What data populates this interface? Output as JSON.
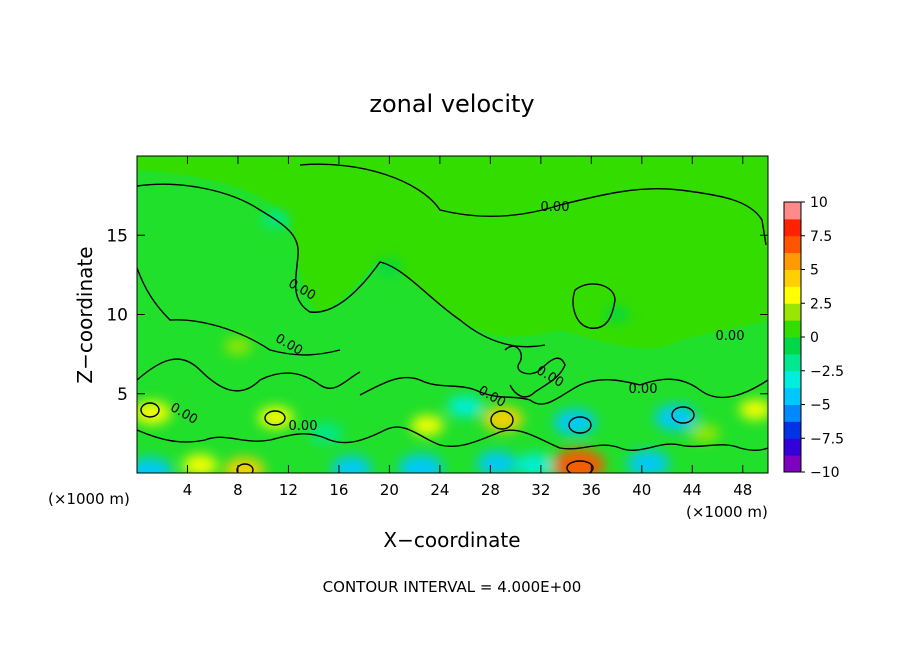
{
  "chart_data": {
    "type": "heatmap",
    "title": "zonal velocity",
    "xlabel": "X−coordinate",
    "ylabel": "Z−coordinate",
    "x_unit_left": "(×1000 m)",
    "x_unit_right": "(×1000 m)",
    "xlim": [
      0,
      50
    ],
    "ylim": [
      0,
      20
    ],
    "x_ticks": [
      4,
      8,
      12,
      16,
      20,
      24,
      28,
      32,
      36,
      40,
      44,
      48
    ],
    "x_tick_labels": [
      "4",
      "8",
      "12",
      "16",
      "20",
      "24",
      "28",
      "32",
      "36",
      "40",
      "44",
      "48"
    ],
    "y_ticks": [
      5,
      10,
      15
    ],
    "y_tick_labels": [
      "5",
      "10",
      "15"
    ],
    "contour_labels": [
      "0.00",
      "0.00",
      "0.00",
      "0.00",
      "0.00",
      "0.00",
      "0.00",
      "0.00",
      "0.00"
    ],
    "footer": "CONTOUR INTERVAL = 4.000E+00",
    "colorbar": {
      "min": -10,
      "max": 10,
      "tick_labels": [
        "10",
        "7.5",
        "5",
        "2.5",
        "0",
        "−2.5",
        "−5",
        "−7.5",
        "−10"
      ],
      "tick_values": [
        10,
        7.5,
        5,
        2.5,
        0,
        -2.5,
        -5,
        -7.5,
        -10
      ],
      "colors": [
        "#7f00bf",
        "#3300d9",
        "#0033e6",
        "#0088ff",
        "#00c8ff",
        "#00eedd",
        "#00e890",
        "#00d84a",
        "#33dd00",
        "#9ae600",
        "#ffff00",
        "#ffd000",
        "#ff9a00",
        "#ff5500",
        "#ff2200",
        "#ff8a8a"
      ]
    },
    "features": [
      {
        "x": 1,
        "z": 0.1,
        "value": -5
      },
      {
        "x": 1.2,
        "z": 3.8,
        "value": 3.5
      },
      {
        "x": 5,
        "z": 0.5,
        "value": 3
      },
      {
        "x": 8.5,
        "z": 0.2,
        "value": 4
      },
      {
        "x": 11,
        "z": 3.5,
        "value": 3
      },
      {
        "x": 15,
        "z": 2.5,
        "value": -2.5
      },
      {
        "x": 17,
        "z": 0.3,
        "value": -4
      },
      {
        "x": 22.5,
        "z": 0.3,
        "value": -5
      },
      {
        "x": 23,
        "z": 3,
        "value": 2.5
      },
      {
        "x": 26,
        "z": 4.2,
        "value": -3
      },
      {
        "x": 28.5,
        "z": 0.6,
        "value": -4
      },
      {
        "x": 29,
        "z": 3.4,
        "value": 4
      },
      {
        "x": 31.5,
        "z": 0.5,
        "value": -3.5
      },
      {
        "x": 34.7,
        "z": 3.2,
        "value": -4.5
      },
      {
        "x": 35,
        "z": 0.5,
        "value": 6.5
      },
      {
        "x": 40.5,
        "z": 0.6,
        "value": -4.5
      },
      {
        "x": 42.7,
        "z": 3.5,
        "value": -4.5
      },
      {
        "x": 45,
        "z": 2.5,
        "value": 2
      },
      {
        "x": 49,
        "z": 4,
        "value": 2.5
      },
      {
        "x": 11,
        "z": 16,
        "value": -1.5
      },
      {
        "x": 20,
        "z": 13,
        "value": -1
      },
      {
        "x": 38,
        "z": 10,
        "value": -1
      },
      {
        "x": 8,
        "z": 8,
        "value": 1.5
      }
    ]
  }
}
